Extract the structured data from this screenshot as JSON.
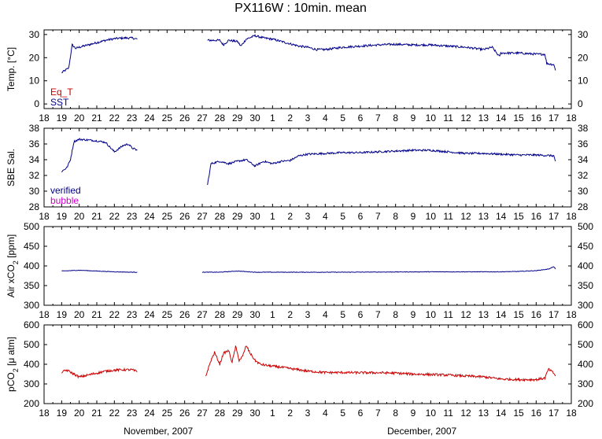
{
  "chart_data": {
    "type": "line",
    "title": "PX116W : 10min. mean",
    "x_axis": {
      "unit": "day",
      "range": [
        18,
        48
      ],
      "tick_values": [
        18,
        19,
        20,
        21,
        22,
        23,
        24,
        25,
        26,
        27,
        28,
        29,
        30,
        31,
        32,
        33,
        34,
        35,
        36,
        37,
        38,
        39,
        40,
        41,
        42,
        43,
        44,
        45,
        46,
        47,
        48
      ],
      "tick_labels": [
        "18",
        "19",
        "20",
        "21",
        "22",
        "23",
        "24",
        "25",
        "26",
        "27",
        "28",
        "29",
        "30",
        "1",
        "2",
        "3",
        "4",
        "5",
        "6",
        "7",
        "8",
        "9",
        "10",
        "11",
        "12",
        "13",
        "14",
        "15",
        "16",
        "17",
        "18"
      ],
      "month_labels": [
        {
          "text": "November, 2007",
          "at": 24.5
        },
        {
          "text": "December, 2007",
          "at": 39.5
        }
      ]
    },
    "panels": [
      {
        "ylabel_prefix": "Temp. [°C]",
        "ylabel_sub": "",
        "ylabel_suffix": "",
        "ylim": [
          -2,
          32
        ],
        "yticks": [
          0,
          10,
          20,
          30
        ],
        "legend": [
          {
            "text": "Eq_T",
            "color": "#cc0000"
          },
          {
            "text": "SST",
            "color": "#000088"
          }
        ],
        "series": [
          {
            "name": "SST",
            "color": "#000088",
            "noise": 0.45,
            "points": [
              [
                19.0,
                13.5
              ],
              [
                19.2,
                14.5
              ],
              [
                19.4,
                15.5
              ],
              [
                19.6,
                25.5
              ],
              [
                19.8,
                24.0
              ],
              [
                20.0,
                24.5
              ],
              [
                20.5,
                25.5
              ],
              [
                21.0,
                26.5
              ],
              [
                21.5,
                27.5
              ],
              [
                22.0,
                28.2
              ],
              [
                22.5,
                28.5
              ],
              [
                23.0,
                28.5
              ],
              [
                23.3,
                28.0
              ]
            ]
          },
          {
            "name": "SST",
            "color": "#000088",
            "noise": 0.45,
            "points": [
              [
                27.3,
                27.5
              ],
              [
                28.0,
                27.5
              ],
              [
                28.2,
                25.5
              ],
              [
                28.5,
                27.5
              ],
              [
                29.0,
                27.0
              ],
              [
                29.2,
                25.0
              ],
              [
                29.5,
                28.0
              ],
              [
                30.0,
                29.5
              ],
              [
                30.5,
                28.5
              ],
              [
                31.0,
                28.0
              ],
              [
                31.5,
                27.0
              ],
              [
                32.0,
                26.0
              ],
              [
                32.5,
                25.0
              ],
              [
                33.0,
                24.5
              ],
              [
                33.5,
                23.5
              ],
              [
                34.0,
                23.5
              ],
              [
                35.0,
                24.5
              ],
              [
                36.0,
                25.0
              ],
              [
                37.0,
                25.5
              ],
              [
                38.0,
                25.8
              ],
              [
                39.0,
                25.5
              ],
              [
                40.0,
                25.5
              ],
              [
                41.0,
                25.0
              ],
              [
                42.0,
                24.5
              ],
              [
                43.0,
                23.5
              ],
              [
                43.5,
                24.5
              ],
              [
                43.9,
                20.5
              ],
              [
                44.0,
                22.0
              ],
              [
                45.0,
                22.0
              ],
              [
                46.0,
                21.5
              ],
              [
                46.5,
                21.5
              ],
              [
                46.6,
                17.5
              ],
              [
                47.0,
                17.0
              ],
              [
                47.1,
                14.5
              ]
            ]
          }
        ]
      },
      {
        "ylabel_prefix": "SBE Sal.",
        "ylabel_sub": "",
        "ylabel_suffix": "",
        "ylim": [
          28,
          38
        ],
        "yticks": [
          28,
          30,
          32,
          34,
          36,
          38
        ],
        "legend": [
          {
            "text": "verified",
            "color": "#000088"
          },
          {
            "text": "bubble",
            "color": "#cc00cc"
          }
        ],
        "series": [
          {
            "name": "verified",
            "color": "#000088",
            "noise": 0.12,
            "points": [
              [
                19.0,
                32.5
              ],
              [
                19.3,
                33.0
              ],
              [
                19.5,
                34.0
              ],
              [
                19.7,
                36.3
              ],
              [
                20.0,
                36.6
              ],
              [
                20.5,
                36.5
              ],
              [
                21.0,
                36.4
              ],
              [
                21.5,
                36.2
              ],
              [
                22.0,
                35.0
              ],
              [
                22.5,
                35.8
              ],
              [
                22.8,
                36.0
              ],
              [
                23.0,
                35.5
              ],
              [
                23.3,
                35.2
              ]
            ]
          },
          {
            "name": "verified",
            "color": "#000088",
            "noise": 0.12,
            "points": [
              [
                27.3,
                30.8
              ],
              [
                27.5,
                33.5
              ],
              [
                28.0,
                33.8
              ],
              [
                28.5,
                33.5
              ],
              [
                29.0,
                33.8
              ],
              [
                29.5,
                34.0
              ],
              [
                30.0,
                33.2
              ],
              [
                30.5,
                33.8
              ],
              [
                31.0,
                33.5
              ],
              [
                31.5,
                33.8
              ],
              [
                32.0,
                33.9
              ],
              [
                32.5,
                34.5
              ],
              [
                33.0,
                34.7
              ],
              [
                34.0,
                34.8
              ],
              [
                35.0,
                34.9
              ],
              [
                36.0,
                34.9
              ],
              [
                37.0,
                35.0
              ],
              [
                38.0,
                35.1
              ],
              [
                39.0,
                35.2
              ],
              [
                40.0,
                35.2
              ],
              [
                41.0,
                35.0
              ],
              [
                42.0,
                34.8
              ],
              [
                43.0,
                34.8
              ],
              [
                44.0,
                34.7
              ],
              [
                45.0,
                34.6
              ],
              [
                46.0,
                34.6
              ],
              [
                47.0,
                34.5
              ],
              [
                47.1,
                33.8
              ]
            ]
          }
        ]
      },
      {
        "ylabel_prefix": "Air xCO",
        "ylabel_sub": "2",
        "ylabel_suffix": " [ppm]",
        "ylim": [
          300,
          500
        ],
        "yticks": [
          300,
          350,
          400,
          450,
          500
        ],
        "legend": [],
        "series": [
          {
            "name": "Air xCO2",
            "color": "#000088",
            "noise": 0.6,
            "points": [
              [
                19.0,
                387
              ],
              [
                20.0,
                389
              ],
              [
                21.0,
                387
              ],
              [
                22.0,
                385
              ],
              [
                23.0,
                384
              ],
              [
                23.3,
                384
              ]
            ]
          },
          {
            "name": "Air xCO2",
            "color": "#000088",
            "noise": 0.6,
            "points": [
              [
                27.0,
                384
              ],
              [
                28.0,
                384
              ],
              [
                29.0,
                387
              ],
              [
                30.0,
                384
              ],
              [
                32.0,
                384
              ],
              [
                35.0,
                384
              ],
              [
                40.0,
                385
              ],
              [
                44.0,
                385
              ],
              [
                45.0,
                386
              ],
              [
                46.0,
                388
              ],
              [
                46.7,
                392
              ],
              [
                47.0,
                398
              ],
              [
                47.1,
                392
              ]
            ]
          }
        ]
      },
      {
        "ylabel_prefix": "pCO",
        "ylabel_sub": "2",
        "ylabel_suffix": " [μ atm]",
        "ylim": [
          200,
          600
        ],
        "yticks": [
          200,
          300,
          400,
          500,
          600
        ],
        "legend": [],
        "series": [
          {
            "name": "pCO2",
            "color": "#cc0000",
            "noise": 6,
            "points": [
              [
                19.0,
                360
              ],
              [
                19.3,
                370
              ],
              [
                19.6,
                355
              ],
              [
                20.0,
                335
              ],
              [
                20.5,
                345
              ],
              [
                21.0,
                355
              ],
              [
                21.5,
                365
              ],
              [
                22.0,
                370
              ],
              [
                22.5,
                372
              ],
              [
                23.0,
                372
              ],
              [
                23.3,
                362
              ]
            ]
          },
          {
            "name": "pCO2",
            "color": "#cc0000",
            "noise": 6,
            "points": [
              [
                27.2,
                340
              ],
              [
                27.5,
                420
              ],
              [
                27.7,
                460
              ],
              [
                28.0,
                400
              ],
              [
                28.2,
                455
              ],
              [
                28.5,
                470
              ],
              [
                28.7,
                410
              ],
              [
                28.9,
                490
              ],
              [
                29.1,
                420
              ],
              [
                29.3,
                440
              ],
              [
                29.5,
                495
              ],
              [
                29.7,
                460
              ],
              [
                30.0,
                420
              ],
              [
                30.3,
                400
              ],
              [
                30.6,
                395
              ],
              [
                31.0,
                390
              ],
              [
                31.5,
                385
              ],
              [
                32.0,
                378
              ],
              [
                32.5,
                372
              ],
              [
                33.0,
                365
              ],
              [
                34.0,
                358
              ],
              [
                35.0,
                358
              ],
              [
                36.0,
                357
              ],
              [
                37.0,
                357
              ],
              [
                38.0,
                355
              ],
              [
                39.0,
                350
              ],
              [
                40.0,
                348
              ],
              [
                41.0,
                345
              ],
              [
                42.0,
                340
              ],
              [
                43.0,
                336
              ],
              [
                44.0,
                325
              ],
              [
                45.0,
                322
              ],
              [
                46.0,
                322
              ],
              [
                46.5,
                330
              ],
              [
                46.7,
                375
              ],
              [
                47.0,
                355
              ],
              [
                47.1,
                340
              ]
            ]
          }
        ]
      }
    ]
  }
}
